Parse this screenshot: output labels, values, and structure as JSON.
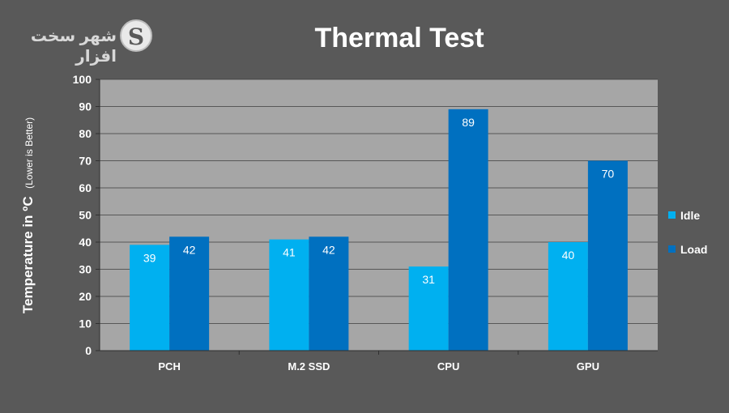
{
  "logo": {
    "text": "شهر سخت افزار",
    "mark": "S"
  },
  "chart_data": {
    "type": "bar",
    "title": "Thermal Test",
    "ylabel_main": "Temperature in ºC",
    "ylabel_note": "(Lower is Better)",
    "xlabel": "",
    "categories": [
      "PCH",
      "M.2 SSD",
      "CPU",
      "GPU"
    ],
    "series": [
      {
        "name": "Idle",
        "values": [
          39,
          41,
          31,
          40
        ],
        "color": "#00b0f0"
      },
      {
        "name": "Load",
        "values": [
          42,
          42,
          89,
          70
        ],
        "color": "#0070c0"
      }
    ],
    "ylim": [
      0,
      100
    ],
    "yticks": [
      0,
      10,
      20,
      30,
      40,
      50,
      60,
      70,
      80,
      90,
      100
    ],
    "grid": true,
    "legend_position": "right",
    "plot_background": "#a6a6a6",
    "page_background": "#595959"
  }
}
